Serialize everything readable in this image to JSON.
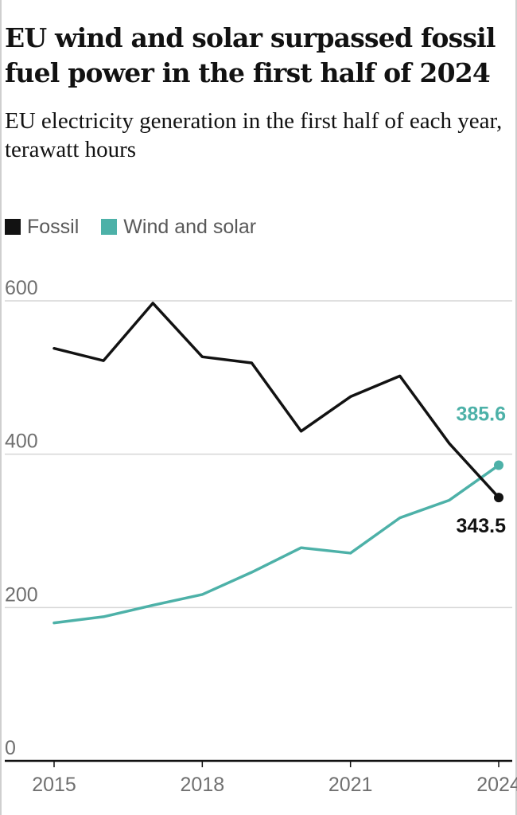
{
  "chart_data": {
    "type": "line",
    "title": "EU wind and solar surpassed fossil fuel power in the first half of 2024",
    "subtitle": "EU electricity generation in the first half of each year, terawatt hours",
    "x": [
      2015,
      2016,
      2017,
      2018,
      2019,
      2020,
      2021,
      2022,
      2023,
      2024
    ],
    "xticks": [
      2015,
      2018,
      2021,
      2024
    ],
    "yticks": [
      0,
      200,
      400,
      600
    ],
    "ylim": [
      0,
      600
    ],
    "grid": true,
    "legend_position": "top-left",
    "series": [
      {
        "name": "Fossil",
        "color": "#121212",
        "values": [
          538,
          522,
          597,
          527,
          519,
          430,
          475,
          502,
          414,
          343.5
        ],
        "end_label": "343.5"
      },
      {
        "name": "Wind and solar",
        "color": "#4db1a8",
        "values": [
          180,
          188,
          203,
          217,
          246,
          278,
          271,
          317,
          340,
          385.6
        ],
        "end_label": "385.6"
      }
    ]
  }
}
